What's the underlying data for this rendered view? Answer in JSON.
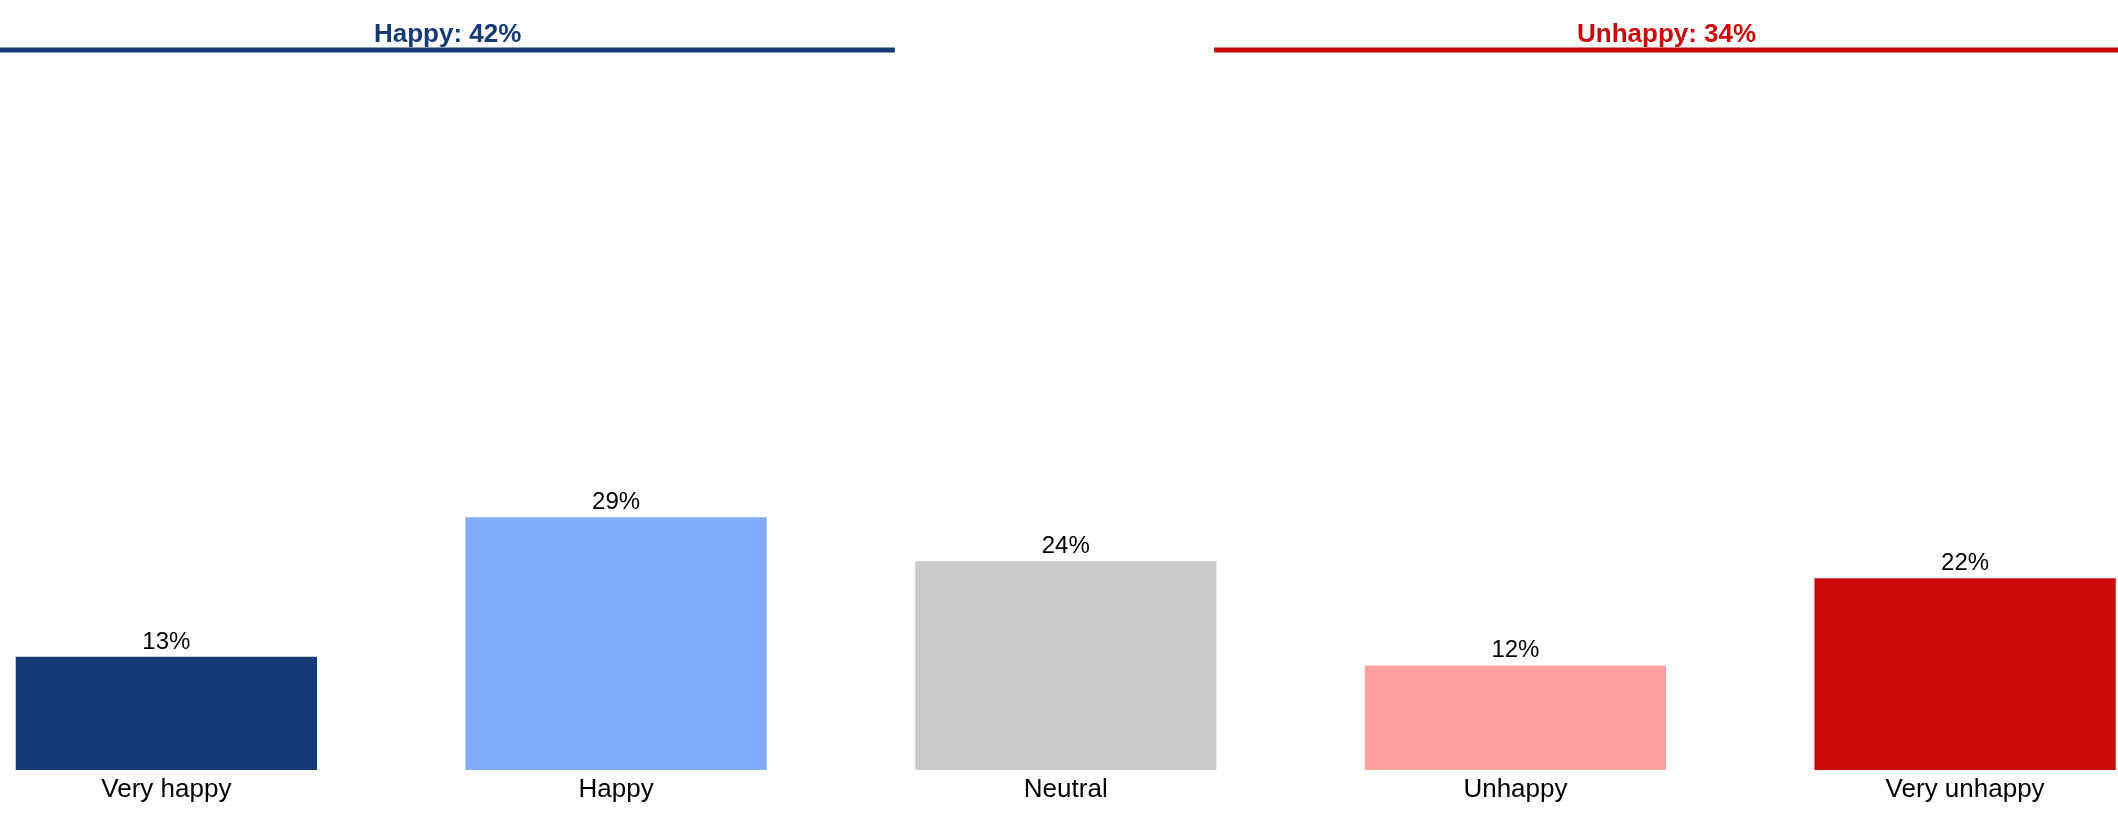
{
  "chart_data": {
    "type": "bar",
    "categories": [
      "Very happy",
      "Happy",
      "Neutral",
      "Unhappy",
      "Very unhappy"
    ],
    "values": [
      13,
      29,
      24,
      12,
      22
    ],
    "colors": [
      "#153a75",
      "#7fadfb",
      "#cbcbcb",
      "#fda1a1",
      "#cc0808"
    ],
    "data_labels": true,
    "value_labels": [
      "13%",
      "29%",
      "24%",
      "12%",
      "22%"
    ],
    "annotations": [
      "Happy: 42%",
      "Unhappy: 34%"
    ],
    "legend": false
  }
}
